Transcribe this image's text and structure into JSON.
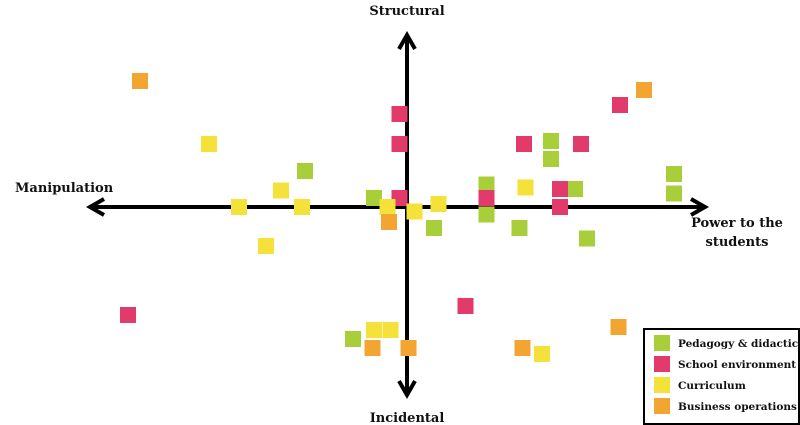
{
  "labels": {
    "top": "Structural",
    "bottom": "Incidental",
    "left": "Manipulation",
    "right_line1": "Power to the",
    "right_line2": "students"
  },
  "legend": [
    {
      "label": "Pedagogy & didactics",
      "color": "#a8cf3a"
    },
    {
      "label": "School environment",
      "color": "#e23a6a"
    },
    {
      "label": "Curriculum",
      "color": "#f4e13a"
    },
    {
      "label": "Business operations",
      "color": "#f2a531"
    }
  ],
  "chart_data": {
    "type": "scatter",
    "xlim": [
      -10,
      10
    ],
    "ylim": [
      -6.5,
      6.5
    ],
    "grid": false,
    "legend_position": "bottom-right",
    "series": [
      {
        "name": "Pedagogy & didactics",
        "color": "#a8cf3a",
        "points": [
          [
            -3.4,
            1.2
          ],
          [
            -1.1,
            0.3
          ],
          [
            2.65,
            0.75
          ],
          [
            2.65,
            -0.25
          ],
          [
            3.75,
            -0.7
          ],
          [
            4.8,
            2.2
          ],
          [
            4.8,
            1.6
          ],
          [
            5.6,
            0.6
          ],
          [
            6.0,
            -1.05
          ],
          [
            8.9,
            1.1
          ],
          [
            8.9,
            0.45
          ],
          [
            0.9,
            -0.7
          ],
          [
            -1.8,
            -4.4
          ]
        ]
      },
      {
        "name": "School environment",
        "color": "#e23a6a",
        "points": [
          [
            -0.25,
            3.1
          ],
          [
            -0.25,
            2.1
          ],
          [
            -0.25,
            0.3
          ],
          [
            2.65,
            0.3
          ],
          [
            3.9,
            2.1
          ],
          [
            5.1,
            0.6
          ],
          [
            5.1,
            0.0
          ],
          [
            5.8,
            2.1
          ],
          [
            7.1,
            3.4
          ],
          [
            1.95,
            -3.3
          ],
          [
            -9.3,
            -3.6
          ]
        ]
      },
      {
        "name": "Curriculum",
        "color": "#f4e13a",
        "points": [
          [
            -6.6,
            2.1
          ],
          [
            -4.2,
            0.55
          ],
          [
            -3.5,
            0.0
          ],
          [
            -5.6,
            0.0
          ],
          [
            -4.7,
            -1.3
          ],
          [
            -0.65,
            0.0
          ],
          [
            0.25,
            -0.15
          ],
          [
            1.05,
            0.1
          ],
          [
            3.95,
            0.65
          ],
          [
            -1.1,
            -4.1
          ],
          [
            -0.55,
            -4.1
          ],
          [
            4.5,
            -4.9
          ]
        ]
      },
      {
        "name": "Business operations",
        "color": "#f2a531",
        "points": [
          [
            -8.9,
            4.2
          ],
          [
            7.9,
            3.9
          ],
          [
            -0.6,
            -0.5
          ],
          [
            -1.15,
            -4.7
          ],
          [
            0.05,
            -4.7
          ],
          [
            3.85,
            -4.7
          ],
          [
            7.05,
            -4.0
          ]
        ]
      }
    ]
  }
}
